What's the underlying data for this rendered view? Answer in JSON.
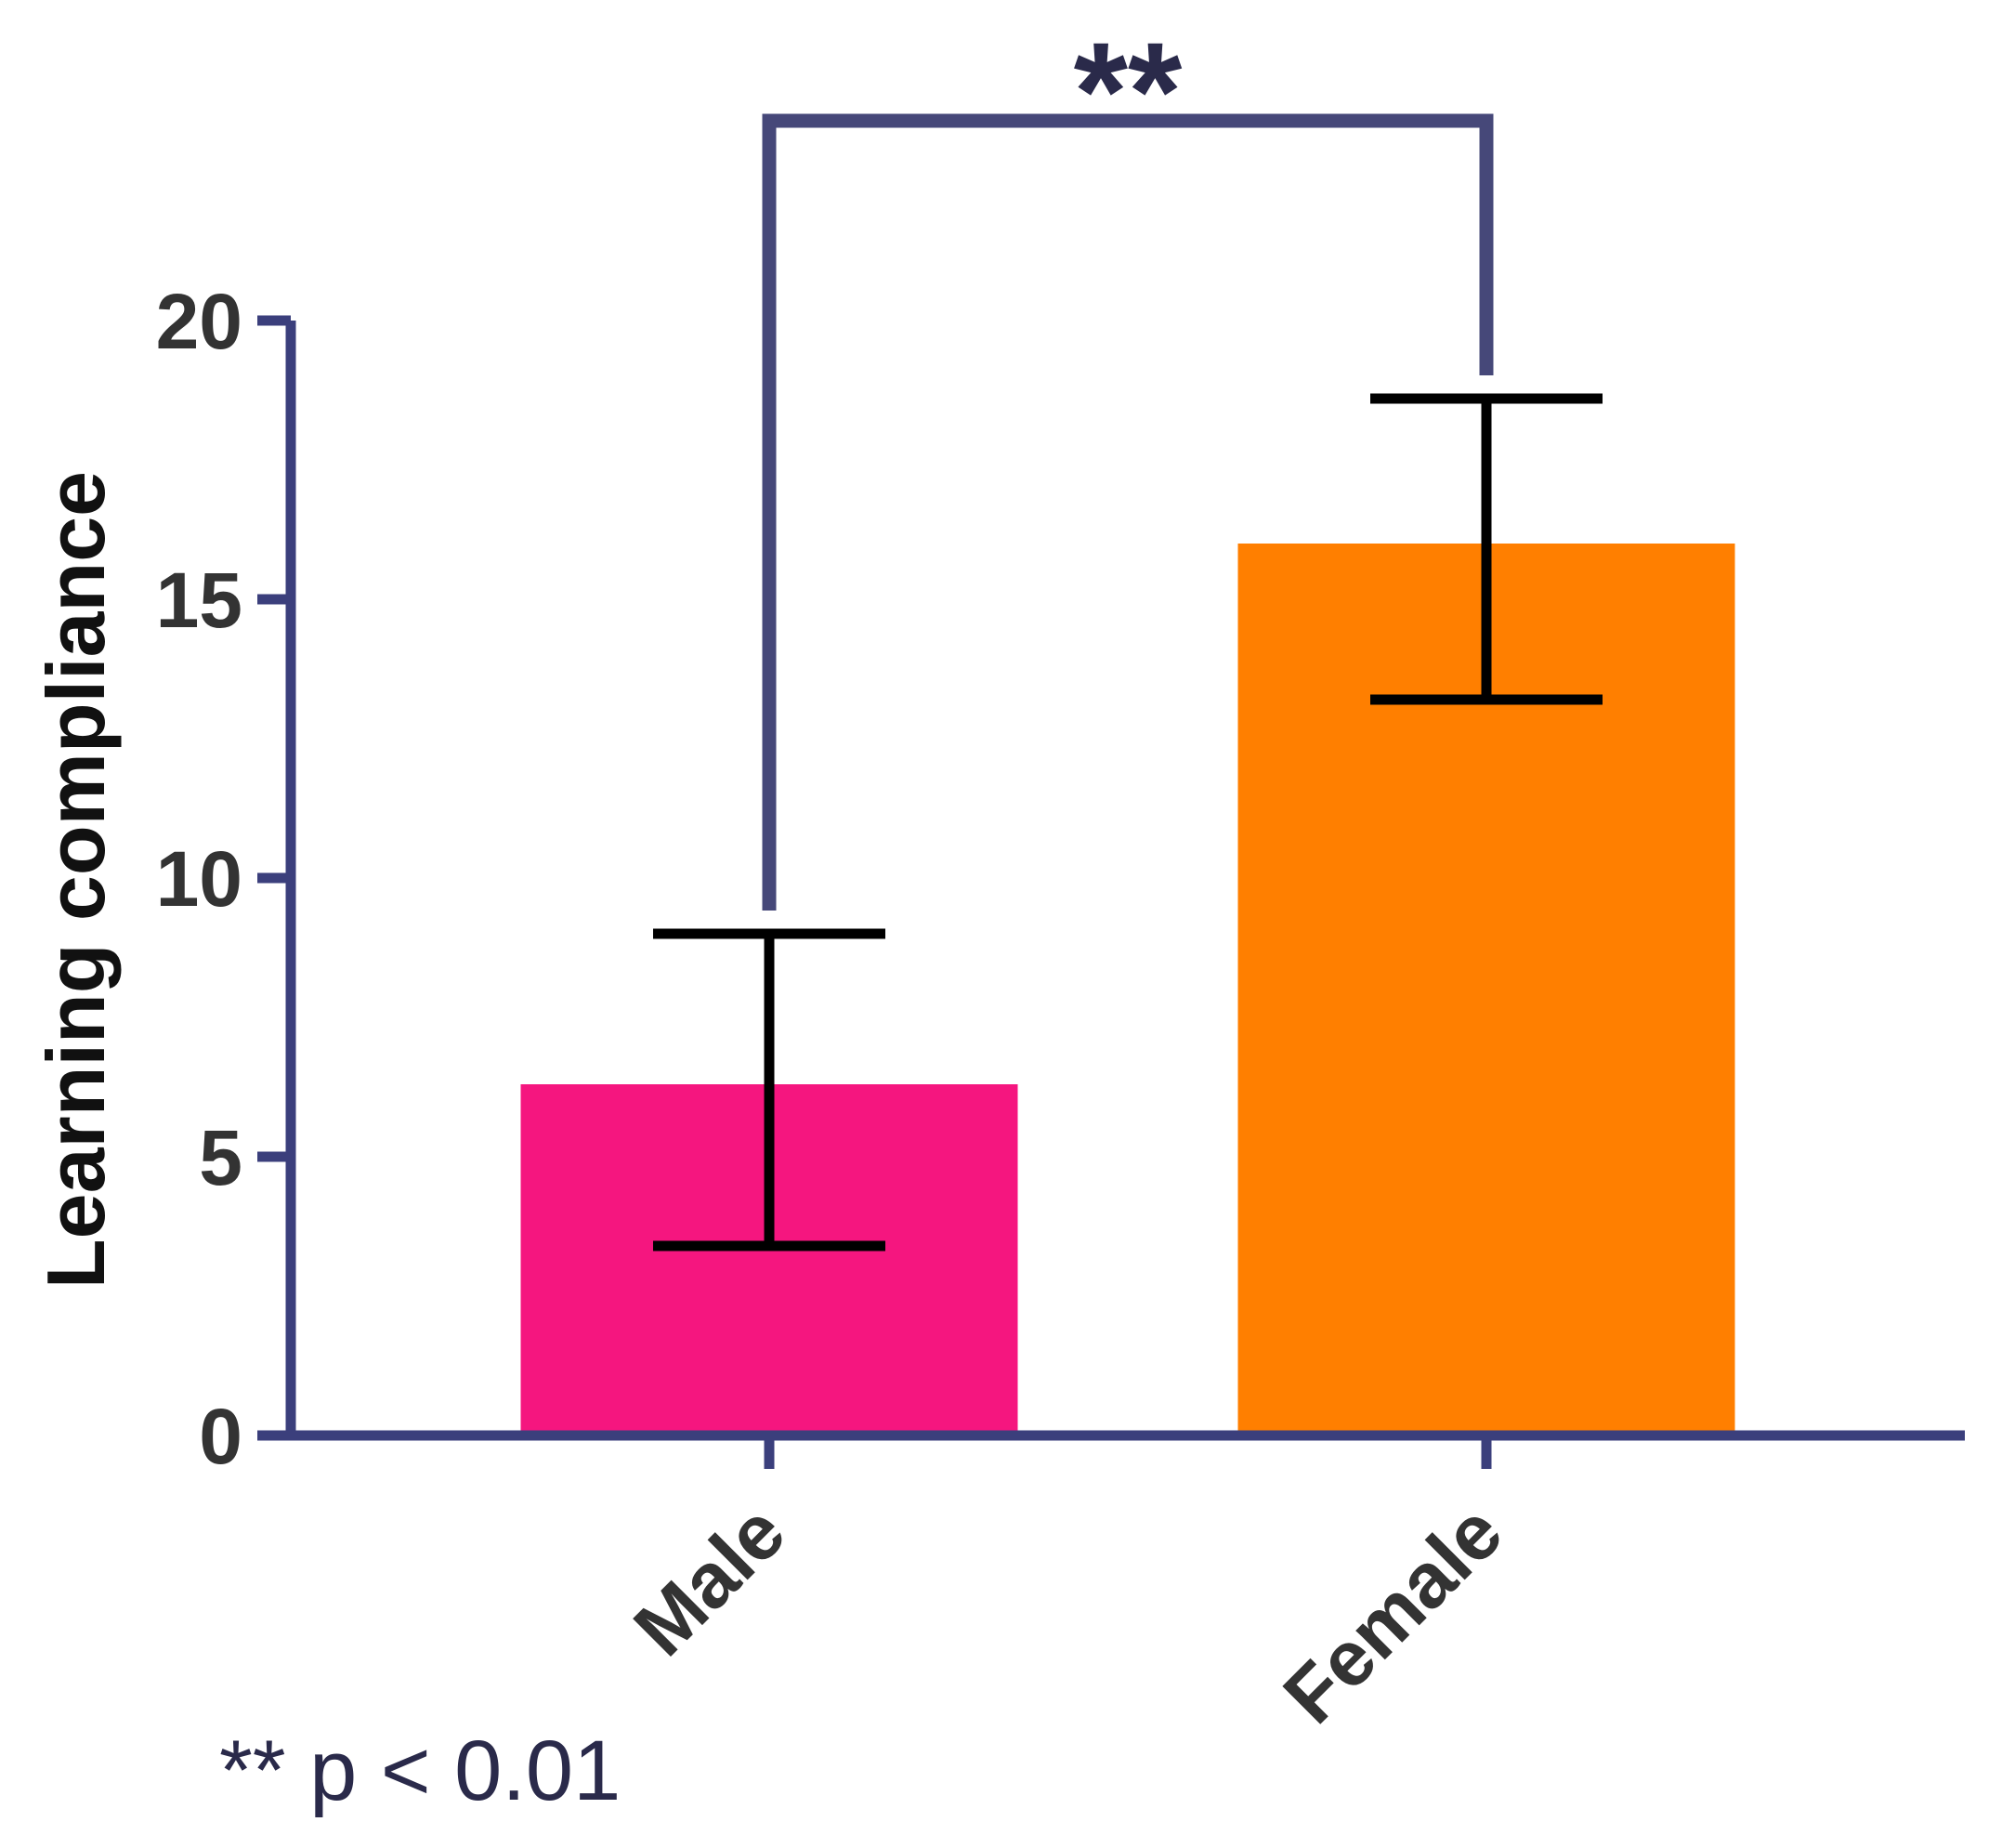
{
  "chart_data": {
    "type": "bar",
    "categories": [
      "Male",
      "Female"
    ],
    "values": [
      6.3,
      16.0
    ],
    "error_low": [
      3.4,
      13.2
    ],
    "error_high": [
      9.0,
      18.6
    ],
    "ylabel": "Learning compliance",
    "xlabel": "",
    "ylim": [
      0,
      20
    ],
    "yticks": [
      "0",
      "5",
      "10",
      "15",
      "20"
    ],
    "grid": false,
    "significance": {
      "between": [
        "Male",
        "Female"
      ],
      "label": "**"
    },
    "footnote": "** p < 0.01"
  },
  "colors": {
    "axis": "#3b3f7c",
    "bracket": "#464879",
    "error_bar": "#000000",
    "bars": [
      "#f5167f",
      "#ff7f00"
    ]
  }
}
